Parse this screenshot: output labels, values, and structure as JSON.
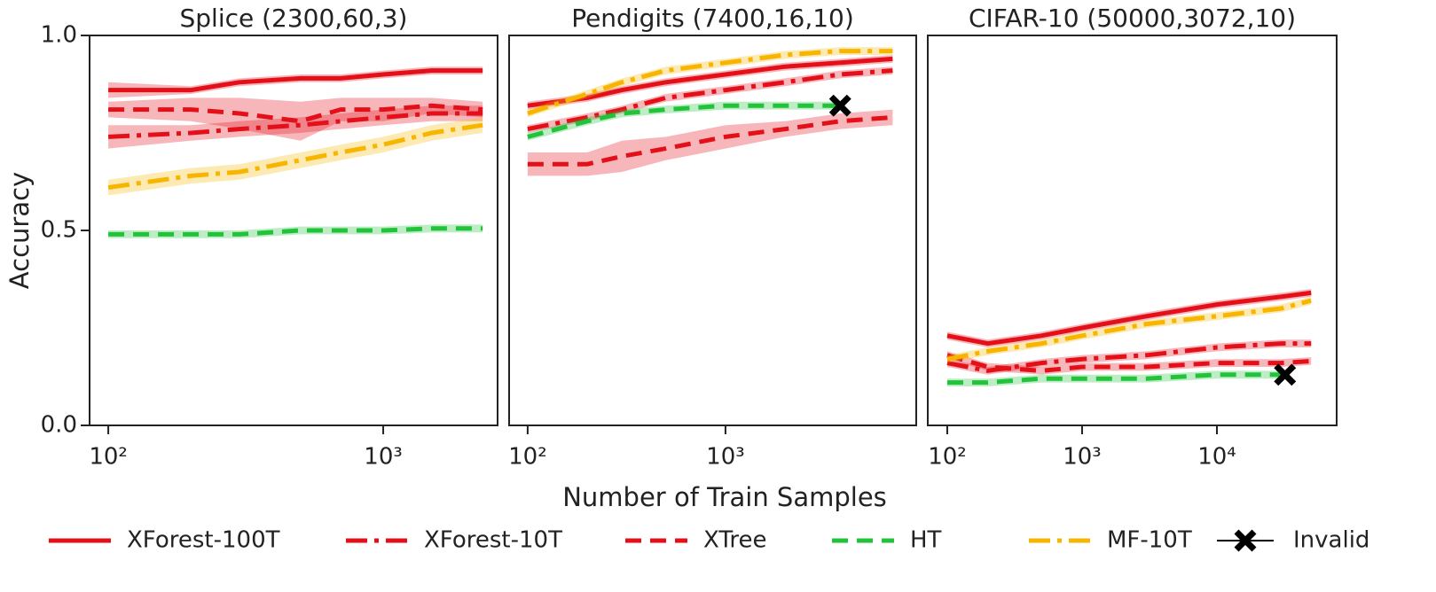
{
  "figure": {
    "xlabel": "Number of Train Samples",
    "ylabel": "Accuracy"
  },
  "chart_data": [
    {
      "type": "line",
      "title": "Splice (2300,60,3)",
      "xscale": "log",
      "xlim": [
        85.5,
        2606
      ],
      "ylim": [
        0,
        1
      ],
      "xticks": [
        {
          "value": 100,
          "label": "10²"
        },
        {
          "value": 1000,
          "label": "10³"
        }
      ],
      "yticks": [
        {
          "value": 0,
          "label": "0.0"
        },
        {
          "value": 0.5,
          "label": "0.5"
        },
        {
          "value": 1,
          "label": "1.0"
        }
      ],
      "x": [
        100,
        200,
        300,
        500,
        700,
        1000,
        1500,
        2300
      ],
      "series": [
        {
          "name": "XForest-100T",
          "color": "#e3101a",
          "style": "solid",
          "values": [
            0.86,
            0.86,
            0.88,
            0.89,
            0.89,
            0.9,
            0.91,
            0.91
          ],
          "errors": [
            0.02,
            0.01,
            0.01,
            0.01,
            0.01,
            0.01,
            0.01,
            0.01
          ]
        },
        {
          "name": "XForest-10T",
          "color": "#e3101a",
          "style": "dashdot",
          "values": [
            0.74,
            0.75,
            0.76,
            0.77,
            0.78,
            0.79,
            0.8,
            0.8
          ],
          "errors": [
            0.03,
            0.02,
            0.02,
            0.02,
            0.02,
            0.02,
            0.02,
            0.02
          ]
        },
        {
          "name": "XTree",
          "color": "#e3101a",
          "style": "dashed",
          "values": [
            0.81,
            0.81,
            0.8,
            0.78,
            0.81,
            0.81,
            0.82,
            0.81
          ],
          "errors": [
            0.02,
            0.03,
            0.04,
            0.05,
            0.03,
            0.03,
            0.02,
            0.02
          ]
        },
        {
          "name": "HT",
          "color": "#22c33a",
          "style": "dashed",
          "values": [
            0.49,
            0.49,
            0.49,
            0.5,
            0.5,
            0.5,
            0.505,
            0.505
          ],
          "errors": [
            0.01,
            0.01,
            0.01,
            0.01,
            0.01,
            0.01,
            0.01,
            0.01
          ]
        },
        {
          "name": "MF-10T",
          "color": "#f7b500",
          "style": "dashdot",
          "values": [
            0.61,
            0.64,
            0.65,
            0.68,
            0.7,
            0.72,
            0.75,
            0.77
          ],
          "errors": [
            0.02,
            0.02,
            0.02,
            0.02,
            0.02,
            0.02,
            0.02,
            0.02
          ]
        }
      ]
    },
    {
      "type": "line",
      "title": "Pendigits (7400,16,10)",
      "xscale": "log",
      "xlim": [
        80.6,
        9210
      ],
      "ylim": [
        0,
        1
      ],
      "xticks": [
        {
          "value": 100,
          "label": "10²"
        },
        {
          "value": 1000,
          "label": "10³"
        }
      ],
      "x": [
        100,
        200,
        300,
        500,
        1000,
        2000,
        3800,
        7000
      ],
      "series": [
        {
          "name": "XForest-100T",
          "color": "#e3101a",
          "style": "solid",
          "values": [
            0.82,
            0.84,
            0.86,
            0.88,
            0.9,
            0.92,
            0.93,
            0.94
          ],
          "errors": [
            0.01,
            0.01,
            0.01,
            0.01,
            0.01,
            0.01,
            0.01,
            0.01
          ]
        },
        {
          "name": "XForest-10T",
          "color": "#e3101a",
          "style": "dashdot",
          "values": [
            0.76,
            0.79,
            0.81,
            0.84,
            0.86,
            0.88,
            0.9,
            0.91
          ],
          "errors": [
            0.01,
            0.01,
            0.01,
            0.01,
            0.01,
            0.01,
            0.01,
            0.01
          ]
        },
        {
          "name": "XTree",
          "color": "#e3101a",
          "style": "dashed",
          "values": [
            0.67,
            0.67,
            0.69,
            0.71,
            0.74,
            0.76,
            0.78,
            0.79
          ],
          "errors": [
            0.03,
            0.03,
            0.04,
            0.03,
            0.03,
            0.02,
            0.02,
            0.02
          ]
        },
        {
          "name": "HT",
          "color": "#22c33a",
          "style": "dashed",
          "values": [
            0.74,
            0.78,
            0.8,
            0.81,
            0.82,
            0.82,
            0.82,
            null
          ],
          "errors": [
            0.01,
            0.01,
            0.01,
            0.01,
            0.01,
            0.01,
            0.01,
            null
          ]
        },
        {
          "name": "MF-10T",
          "color": "#f7b500",
          "style": "dashdot",
          "values": [
            0.8,
            0.85,
            0.88,
            0.91,
            0.93,
            0.95,
            0.96,
            0.96
          ],
          "errors": [
            0.01,
            0.01,
            0.01,
            0.01,
            0.01,
            0.01,
            0.01,
            0.01
          ]
        }
      ],
      "markers": [
        {
          "name": "Invalid",
          "x": 3800,
          "y": 0.82
        }
      ]
    },
    {
      "type": "line",
      "title": "CIFAR-10 (50000,3072,10)",
      "xscale": "log",
      "xlim": [
        71.7,
        77300
      ],
      "ylim": [
        0,
        1
      ],
      "xticks": [
        {
          "value": 100,
          "label": "10²"
        },
        {
          "value": 1000,
          "label": "10³"
        },
        {
          "value": 10000,
          "label": "10⁴"
        }
      ],
      "x": [
        100,
        200,
        500,
        1000,
        3000,
        10000,
        30000,
        50000
      ],
      "series": [
        {
          "name": "XForest-100T",
          "color": "#e3101a",
          "style": "solid",
          "values": [
            0.23,
            0.21,
            0.23,
            0.25,
            0.28,
            0.31,
            0.33,
            0.34
          ],
          "errors": [
            0.01,
            0.01,
            0.01,
            0.01,
            0.01,
            0.01,
            0.01,
            0.01
          ]
        },
        {
          "name": "XForest-10T",
          "color": "#e3101a",
          "style": "dashdot",
          "values": [
            0.16,
            0.14,
            0.16,
            0.17,
            0.18,
            0.2,
            0.21,
            0.21
          ],
          "errors": [
            0.01,
            0.01,
            0.01,
            0.01,
            0.01,
            0.01,
            0.01,
            0.01
          ]
        },
        {
          "name": "XTree",
          "color": "#e3101a",
          "style": "dashed",
          "values": [
            0.18,
            0.15,
            0.14,
            0.15,
            0.15,
            0.16,
            0.16,
            0.165
          ],
          "errors": [
            0.01,
            0.01,
            0.01,
            0.01,
            0.01,
            0.01,
            0.01,
            0.01
          ]
        },
        {
          "name": "HT",
          "color": "#22c33a",
          "style": "dashed",
          "values": [
            0.11,
            0.11,
            0.12,
            0.12,
            0.12,
            0.13,
            0.13,
            null
          ],
          "errors": [
            0.01,
            0.01,
            0.01,
            0.01,
            0.01,
            0.01,
            0.01,
            null
          ]
        },
        {
          "name": "MF-10T",
          "color": "#f7b500",
          "style": "dashdot",
          "values": [
            0.17,
            0.19,
            0.21,
            0.23,
            0.26,
            0.28,
            0.3,
            0.32
          ],
          "errors": [
            0.01,
            0.01,
            0.01,
            0.01,
            0.01,
            0.01,
            0.01,
            0.01
          ]
        }
      ],
      "markers": [
        {
          "name": "Invalid",
          "x": 32000,
          "y": 0.13
        }
      ]
    }
  ]
}
